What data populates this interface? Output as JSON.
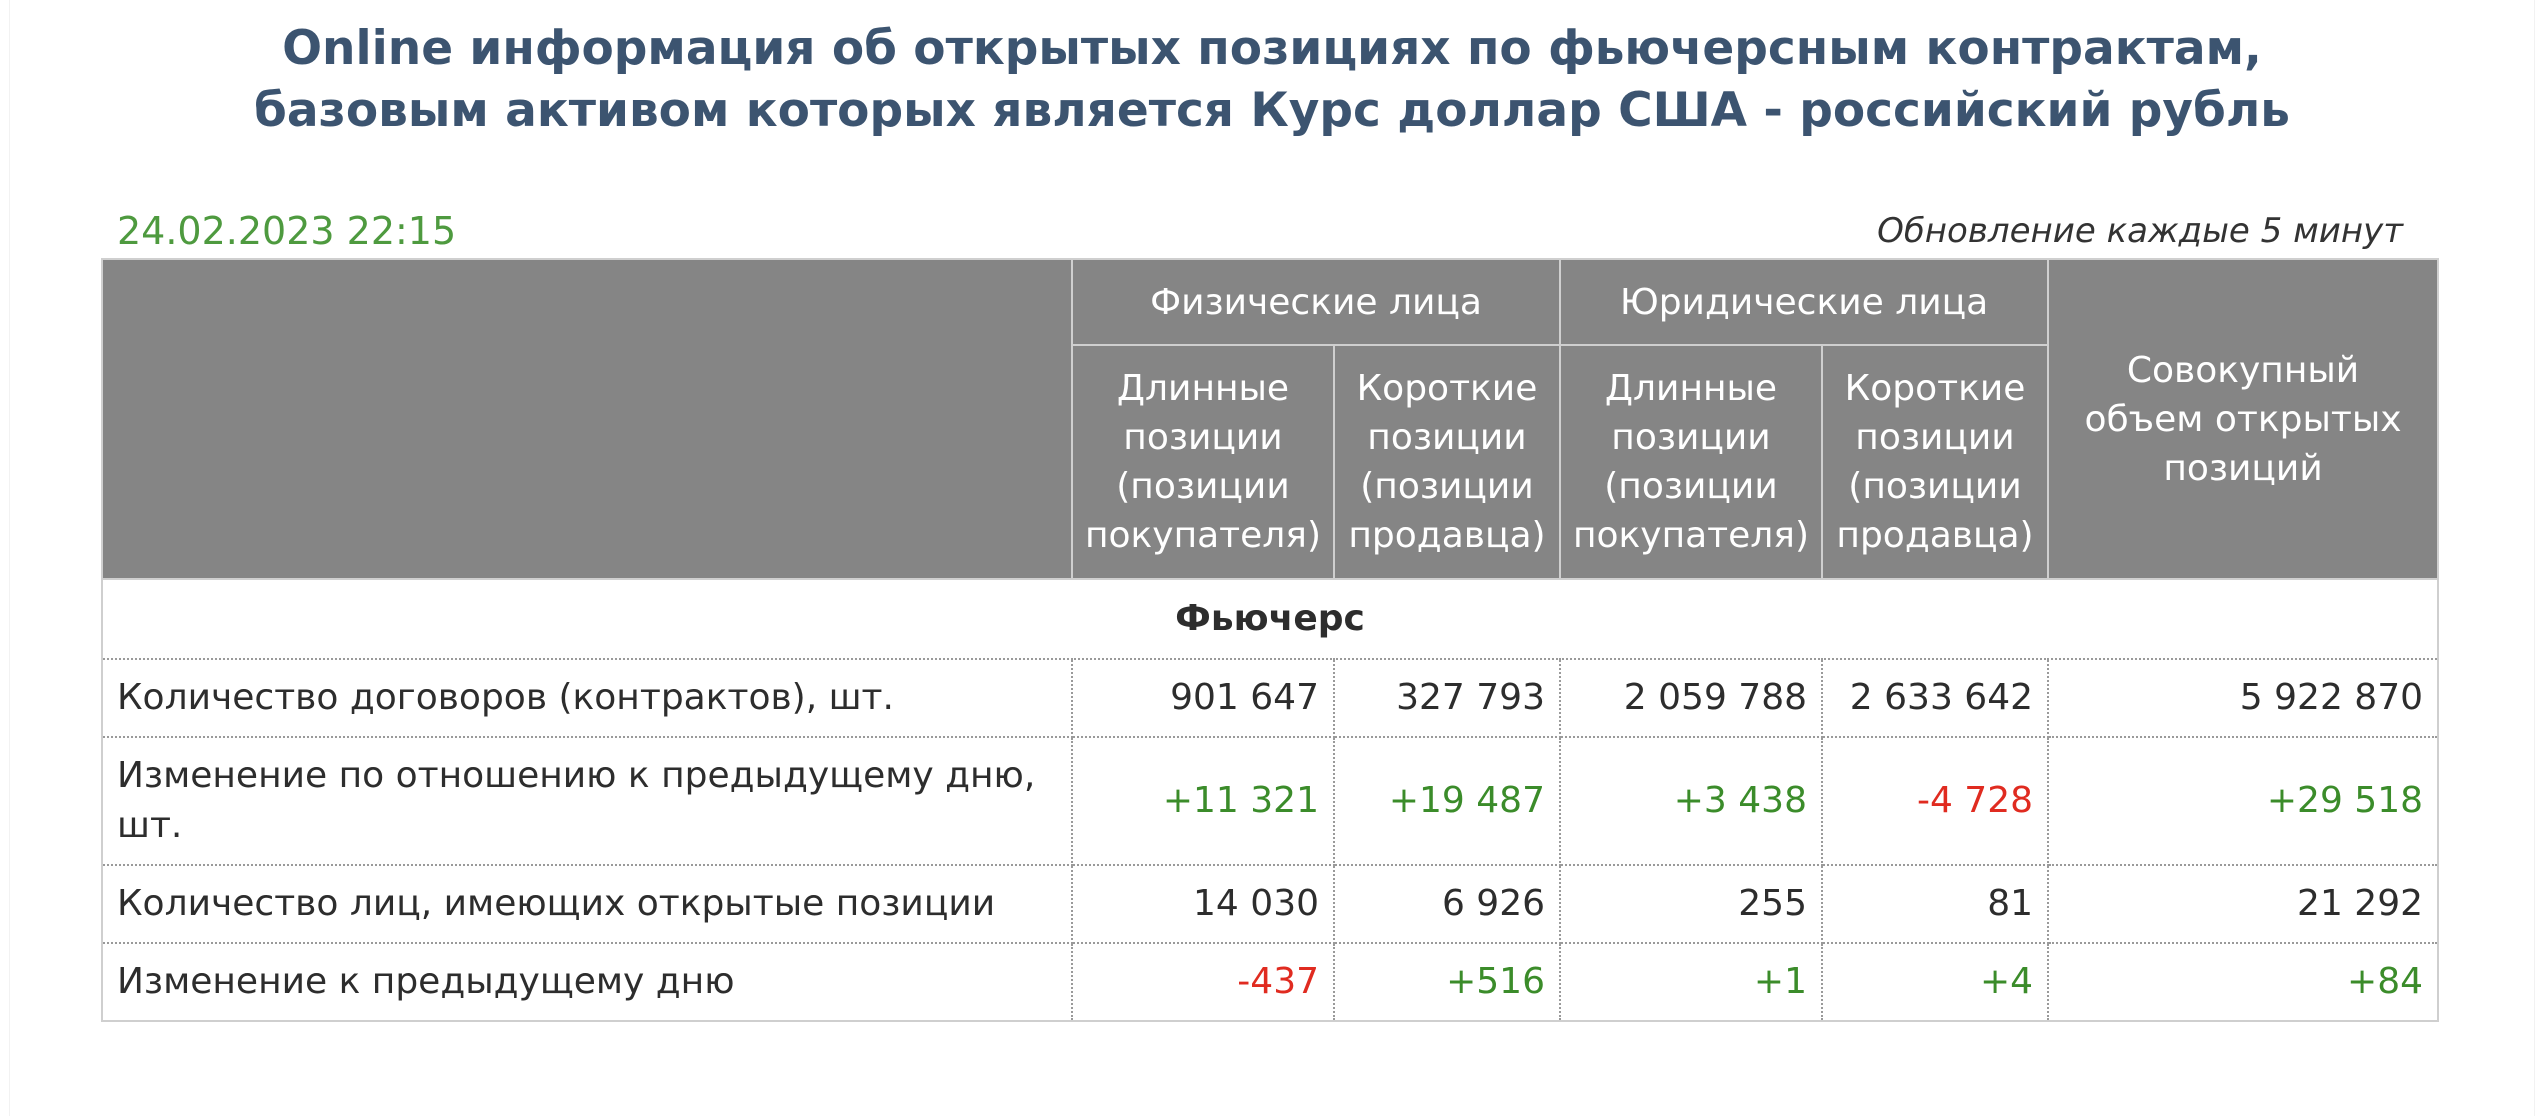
{
  "title": {
    "line1": "Online информация об открытых позициях по фьючерсным контрактам,",
    "line2": "базовым активом которых является Курс доллар США - российский рубль"
  },
  "datetime": "24.02.2023 22:15",
  "update_note": "Обновление каждые 5 минут",
  "colors": {
    "header_bg": "#858585",
    "title": "#3c5470",
    "positive": "#3b8c2a",
    "negative": "#e02b20",
    "date": "#4e9a3f"
  },
  "table": {
    "group_headers": {
      "individuals": "Физические лица",
      "legal": "Юридические лица",
      "total": "Совокупный объем открытых позиций"
    },
    "sub_headers": {
      "long": "Длинные позиции (позиции покупателя)",
      "short": "Короткие позиции (позиции продавца)"
    },
    "section": "Фьючерс",
    "rows": [
      {
        "label": "Количество договоров (контрактов), шт.",
        "values": [
          "901 647",
          "327 793",
          "2 059 788",
          "2 633 642",
          "5 922 870"
        ],
        "signs": [
          "",
          "",
          "",
          "",
          ""
        ]
      },
      {
        "label": "Изменение по отношению к предыдущему дню, шт.",
        "values": [
          "+11 321",
          "+19 487",
          "+3 438",
          "-4 728",
          "+29 518"
        ],
        "signs": [
          "pos",
          "pos",
          "pos",
          "neg",
          "pos"
        ]
      },
      {
        "label": "Количество лиц, имеющих открытые позиции",
        "values": [
          "14 030",
          "6 926",
          "255",
          "81",
          "21 292"
        ],
        "signs": [
          "",
          "",
          "",
          "",
          ""
        ]
      },
      {
        "label": "Изменение к предыдущему дню",
        "values": [
          "-437",
          "+516",
          "+1",
          "+4",
          "+84"
        ],
        "signs": [
          "neg",
          "pos",
          "pos",
          "pos",
          "pos"
        ]
      }
    ]
  }
}
